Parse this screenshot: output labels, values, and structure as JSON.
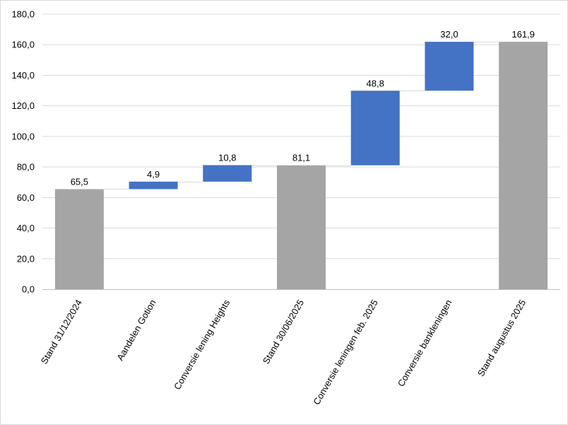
{
  "chart_data": {
    "type": "bar",
    "subtype": "waterfall",
    "title": "",
    "xlabel": "",
    "ylabel": "",
    "ylim": [
      0,
      180
    ],
    "ytick_step": 20,
    "y_tick_labels": [
      "0,0",
      "20,0",
      "40,0",
      "60,0",
      "80,0",
      "100,0",
      "120,0",
      "140,0",
      "160,0",
      "180,0"
    ],
    "grid": true,
    "legend": "none",
    "categories": [
      "Stand 31/12/2024",
      "Aandelen Gotion",
      "Conversie lening Heights",
      "Stand 30/06/2025",
      "Conversie leningen feb. 2025",
      "Conversie bankleningen",
      "Stand augustus 2025"
    ],
    "values": [
      65.5,
      4.9,
      10.8,
      81.1,
      48.8,
      32.0,
      161.9
    ],
    "bar_kinds": [
      "total",
      "increase",
      "increase",
      "total",
      "increase",
      "increase",
      "total"
    ],
    "data_labels": [
      "65,5",
      "4,9",
      "10,8",
      "81,1",
      "48,8",
      "32,0",
      "161,9"
    ],
    "colors": {
      "total": "#a5a5a5",
      "increase": "#4472c4",
      "grid": "#d9d9d9",
      "connector": "#d9d9d9",
      "axis": "#bfbfbf"
    }
  }
}
